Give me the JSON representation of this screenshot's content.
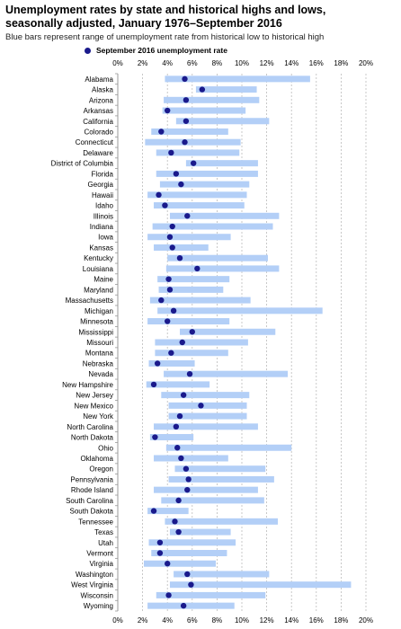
{
  "title": "Unemployment rates by state and historical highs and lows, seasonally adjusted, January 1976–September 2016",
  "subtitle": "Blue bars represent range of unemployment rate from historical low to historical high",
  "legend_label": "September 2016 unemployment rate",
  "colors": {
    "range_bar": "#b3cff7",
    "marker": "#1a1a8c",
    "grid": "#bbbbbb",
    "axis": "#999999"
  },
  "chart_data": {
    "type": "range_dot",
    "xlim": [
      0,
      20
    ],
    "xtick_labels": [
      "0%",
      "2%",
      "4%",
      "6%",
      "8%",
      "10%",
      "12%",
      "14%",
      "16%",
      "18%",
      "20%"
    ],
    "grid": true,
    "states": [
      {
        "name": "Alabama",
        "low": 3.8,
        "high": 15.5,
        "current": 5.4
      },
      {
        "name": "Alaska",
        "low": 6.3,
        "high": 11.2,
        "current": 6.8
      },
      {
        "name": "Arizona",
        "low": 3.7,
        "high": 11.4,
        "current": 5.5
      },
      {
        "name": "Arkansas",
        "low": 3.6,
        "high": 10.3,
        "current": 4.0
      },
      {
        "name": "California",
        "low": 4.7,
        "high": 12.2,
        "current": 5.5
      },
      {
        "name": "Colorado",
        "low": 2.7,
        "high": 8.9,
        "current": 3.5
      },
      {
        "name": "Connecticut",
        "low": 2.2,
        "high": 9.9,
        "current": 5.4
      },
      {
        "name": "Delaware",
        "low": 3.1,
        "high": 9.8,
        "current": 4.3
      },
      {
        "name": "District of Columbia",
        "low": 5.5,
        "high": 11.3,
        "current": 6.1
      },
      {
        "name": "Florida",
        "low": 3.1,
        "high": 11.3,
        "current": 4.7
      },
      {
        "name": "Georgia",
        "low": 3.4,
        "high": 10.6,
        "current": 5.1
      },
      {
        "name": "Hawaii",
        "low": 2.4,
        "high": 10.4,
        "current": 3.3
      },
      {
        "name": "Idaho",
        "low": 2.9,
        "high": 10.2,
        "current": 3.8
      },
      {
        "name": "Illinois",
        "low": 4.2,
        "high": 13.0,
        "current": 5.6
      },
      {
        "name": "Indiana",
        "low": 2.8,
        "high": 12.5,
        "current": 4.4
      },
      {
        "name": "Iowa",
        "low": 2.4,
        "high": 9.1,
        "current": 4.2
      },
      {
        "name": "Kansas",
        "low": 2.9,
        "high": 7.3,
        "current": 4.4
      },
      {
        "name": "Kentucky",
        "low": 4.0,
        "high": 12.1,
        "current": 5.0
      },
      {
        "name": "Louisiana",
        "low": 3.9,
        "high": 13.0,
        "current": 6.4
      },
      {
        "name": "Maine",
        "low": 3.2,
        "high": 9.0,
        "current": 4.1
      },
      {
        "name": "Maryland",
        "low": 3.3,
        "high": 8.5,
        "current": 4.2
      },
      {
        "name": "Massachusetts",
        "low": 2.6,
        "high": 10.7,
        "current": 3.5
      },
      {
        "name": "Michigan",
        "low": 3.2,
        "high": 16.5,
        "current": 4.5
      },
      {
        "name": "Minnesota",
        "low": 2.4,
        "high": 9.0,
        "current": 4.0
      },
      {
        "name": "Mississippi",
        "low": 5.0,
        "high": 12.7,
        "current": 6.0
      },
      {
        "name": "Missouri",
        "low": 3.0,
        "high": 10.5,
        "current": 5.2
      },
      {
        "name": "Montana",
        "low": 3.0,
        "high": 8.9,
        "current": 4.3
      },
      {
        "name": "Nebraska",
        "low": 2.5,
        "high": 6.2,
        "current": 3.2
      },
      {
        "name": "Nevada",
        "low": 3.7,
        "high": 13.7,
        "current": 5.8
      },
      {
        "name": "New Hampshire",
        "low": 2.3,
        "high": 7.4,
        "current": 2.9
      },
      {
        "name": "New Jersey",
        "low": 3.5,
        "high": 10.6,
        "current": 5.3
      },
      {
        "name": "New Mexico",
        "low": 4.1,
        "high": 10.4,
        "current": 6.7
      },
      {
        "name": "New York",
        "low": 4.1,
        "high": 10.4,
        "current": 5.0
      },
      {
        "name": "North Carolina",
        "low": 2.9,
        "high": 11.3,
        "current": 4.7
      },
      {
        "name": "North Dakota",
        "low": 2.6,
        "high": 6.1,
        "current": 3.0
      },
      {
        "name": "Ohio",
        "low": 3.9,
        "high": 14.0,
        "current": 4.8
      },
      {
        "name": "Oklahoma",
        "low": 2.9,
        "high": 8.9,
        "current": 5.1
      },
      {
        "name": "Oregon",
        "low": 4.6,
        "high": 11.9,
        "current": 5.5
      },
      {
        "name": "Pennsylvania",
        "low": 4.1,
        "high": 12.6,
        "current": 5.7
      },
      {
        "name": "Rhode Island",
        "low": 2.9,
        "high": 11.3,
        "current": 5.6
      },
      {
        "name": "South Carolina",
        "low": 3.5,
        "high": 11.8,
        "current": 4.9
      },
      {
        "name": "South Dakota",
        "low": 2.4,
        "high": 5.7,
        "current": 2.9
      },
      {
        "name": "Tennessee",
        "low": 3.8,
        "high": 12.9,
        "current": 4.6
      },
      {
        "name": "Texas",
        "low": 4.2,
        "high": 9.1,
        "current": 4.9
      },
      {
        "name": "Utah",
        "low": 2.5,
        "high": 9.5,
        "current": 3.4
      },
      {
        "name": "Vermont",
        "low": 2.7,
        "high": 8.8,
        "current": 3.4
      },
      {
        "name": "Virginia",
        "low": 2.1,
        "high": 7.9,
        "current": 4.0
      },
      {
        "name": "Washington",
        "low": 4.5,
        "high": 12.2,
        "current": 5.6
      },
      {
        "name": "West Virginia",
        "low": 4.2,
        "high": 18.8,
        "current": 5.9
      },
      {
        "name": "Wisconsin",
        "low": 3.1,
        "high": 11.9,
        "current": 4.1
      },
      {
        "name": "Wyoming",
        "low": 2.4,
        "high": 9.4,
        "current": 5.3
      }
    ]
  }
}
